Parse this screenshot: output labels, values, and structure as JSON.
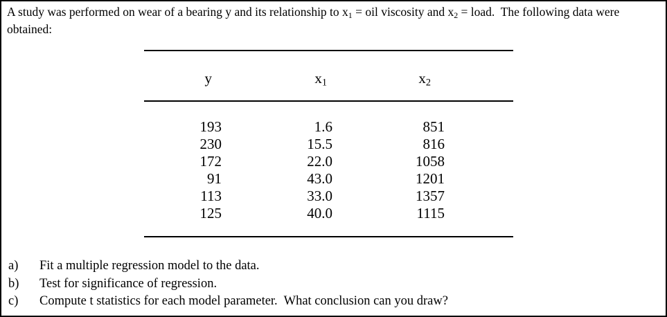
{
  "intro": {
    "part1": "A study was performed on wear of a bearing y and its relationship to x",
    "sub1": "1",
    "part2": " = oil viscosity and x",
    "sub2": "2",
    "part3": " = load.  The following data were obtained:"
  },
  "table": {
    "headers": {
      "col1": "y",
      "col2_base": "x",
      "col2_sub": "1",
      "col3_base": "x",
      "col3_sub": "2"
    },
    "rows": [
      {
        "y": "193",
        "x1": "1.6",
        "x2": "851"
      },
      {
        "y": "230",
        "x1": "15.5",
        "x2": "816"
      },
      {
        "y": "172",
        "x1": "22.0",
        "x2": "1058"
      },
      {
        "y": "91",
        "x1": "43.0",
        "x2": "1201"
      },
      {
        "y": "113",
        "x1": "33.0",
        "x2": "1357"
      },
      {
        "y": "125",
        "x1": "40.0",
        "x2": "1115"
      }
    ]
  },
  "questions": {
    "items": [
      {
        "label": "a)",
        "text": "Fit a multiple regression model to the data."
      },
      {
        "label": "b)",
        "text": "Test for significance of regression."
      },
      {
        "label": "c)",
        "text": "Compute t statistics for each model parameter.  What conclusion can you draw?"
      }
    ]
  }
}
